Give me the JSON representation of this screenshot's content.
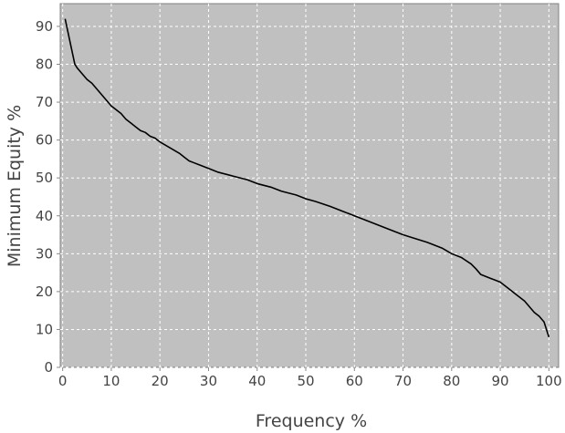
{
  "chart_data": {
    "type": "line",
    "title": "",
    "xlabel": "Frequency %",
    "ylabel": "Minimum Equity %",
    "xlim": [
      -0.5,
      102
    ],
    "ylim": [
      0,
      96
    ],
    "x_ticks": [
      0,
      10,
      20,
      30,
      40,
      50,
      60,
      70,
      80,
      90,
      100
    ],
    "y_ticks": [
      0,
      10,
      20,
      30,
      40,
      50,
      60,
      70,
      80,
      90
    ],
    "grid": true,
    "legend": "none",
    "colors": {
      "plot_background": "#c0c0c0",
      "line": "#000000",
      "grid": "#ffffff"
    },
    "series": [
      {
        "x": [
          0.5,
          1,
          1.5,
          2,
          2.5,
          3,
          4,
          5,
          6,
          7,
          8,
          9,
          10,
          11,
          12,
          13,
          14,
          15,
          16,
          17,
          18,
          19,
          20,
          22,
          24,
          25,
          26,
          27,
          28,
          30,
          32,
          35,
          38,
          40,
          43,
          45,
          48,
          50,
          52,
          55,
          58,
          60,
          62,
          65,
          68,
          70,
          72,
          75,
          78,
          80,
          82,
          84,
          85,
          86,
          88,
          89,
          90,
          91,
          92,
          93,
          94,
          95,
          96,
          97,
          98,
          99,
          99.5,
          100
        ],
        "y": [
          92,
          89,
          86,
          83,
          80,
          79,
          77.5,
          76,
          75,
          73.5,
          72,
          70.5,
          69,
          68,
          67,
          65.5,
          64.5,
          63.5,
          62.5,
          62,
          61,
          60.5,
          59.5,
          58,
          56.5,
          55.5,
          54.5,
          54,
          53.5,
          52.5,
          51.5,
          50.5,
          49.5,
          48.5,
          47.5,
          46.5,
          45.5,
          44.5,
          43.8,
          42.5,
          41,
          40,
          39,
          37.5,
          36,
          35,
          34.2,
          33,
          31.5,
          30,
          29,
          27.3,
          26,
          24.5,
          23.5,
          23,
          22.5,
          21.5,
          20.5,
          19.5,
          18.5,
          17.5,
          16,
          14.5,
          13.5,
          12,
          10,
          8
        ]
      }
    ]
  }
}
